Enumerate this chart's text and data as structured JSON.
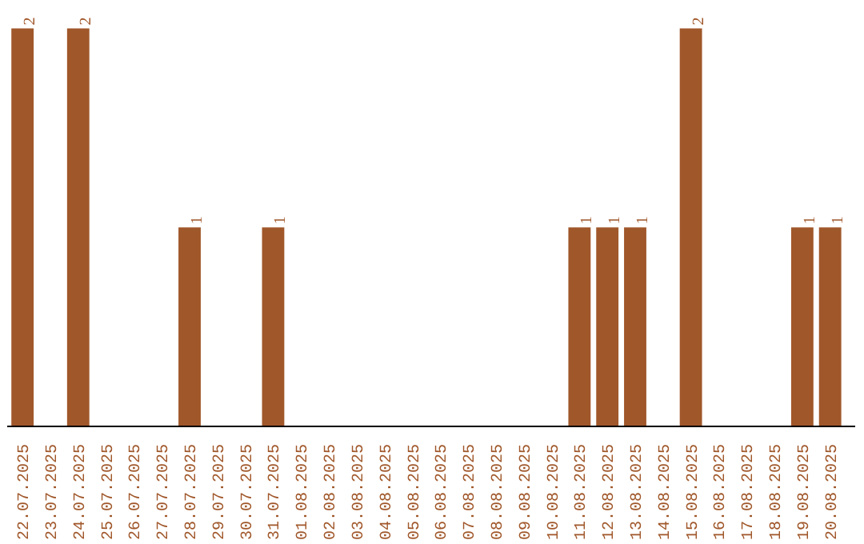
{
  "chart_data": {
    "type": "bar",
    "categories": [
      "22.07.2025",
      "23.07.2025",
      "24.07.2025",
      "25.07.2025",
      "26.07.2025",
      "27.07.2025",
      "28.07.2025",
      "29.07.2025",
      "30.07.2025",
      "31.07.2025",
      "01.08.2025",
      "02.08.2025",
      "03.08.2025",
      "04.08.2025",
      "05.08.2025",
      "06.08.2025",
      "07.08.2025",
      "08.08.2025",
      "09.08.2025",
      "10.08.2025",
      "11.08.2025",
      "12.08.2025",
      "13.08.2025",
      "14.08.2025",
      "15.08.2025",
      "16.08.2025",
      "17.08.2025",
      "18.08.2025",
      "19.08.2025",
      "20.08.2025"
    ],
    "values": [
      2,
      0,
      2,
      0,
      0,
      0,
      1,
      0,
      0,
      1,
      0,
      0,
      0,
      0,
      0,
      0,
      0,
      0,
      0,
      0,
      1,
      1,
      1,
      0,
      2,
      0,
      0,
      0,
      1,
      1
    ],
    "value_labels": [
      "2",
      null,
      "2",
      null,
      null,
      null,
      "1",
      null,
      null,
      "1",
      null,
      null,
      null,
      null,
      null,
      null,
      null,
      null,
      null,
      null,
      "1",
      "1",
      "1",
      null,
      "2",
      null,
      null,
      null,
      "1",
      "1"
    ],
    "color": "#a0572a",
    "tick_labels": "x"
  }
}
